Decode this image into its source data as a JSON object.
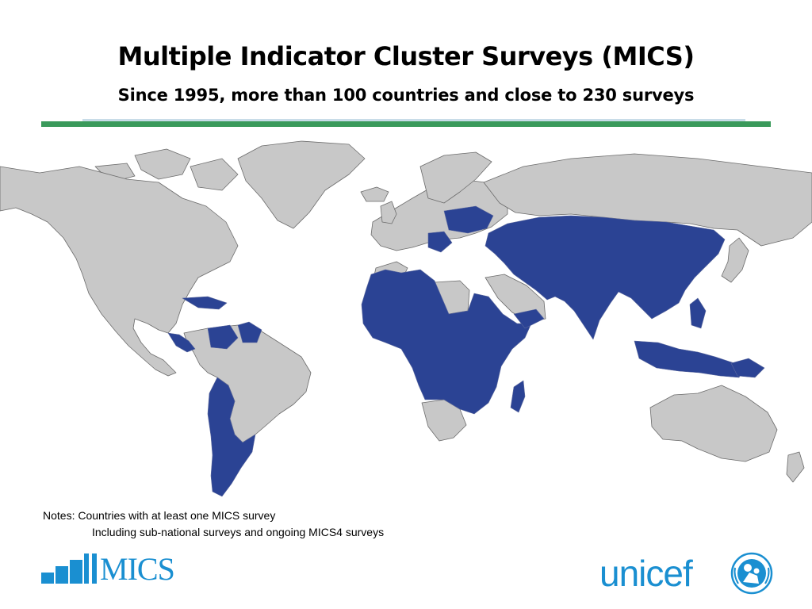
{
  "header": {
    "title": "Multiple Indicator Cluster Surveys (MICS)",
    "subtitle": "Since 1995, more than 100 countries and close to 230 surveys"
  },
  "map": {
    "legend_color_surveyed": "#2b4394",
    "legend_color_other": "#c8c8c8",
    "border_color": "#6b6b6b"
  },
  "notes": {
    "line1": "Notes: Countries with at least one MICS survey",
    "line2": "Including sub-national surveys and ongoing MICS4 surveys"
  },
  "logos": {
    "mics_text": "MICS",
    "unicef_text": "unicef"
  },
  "colors": {
    "accent_green": "#3a9a5b",
    "brand_blue": "#1a8fd1"
  }
}
